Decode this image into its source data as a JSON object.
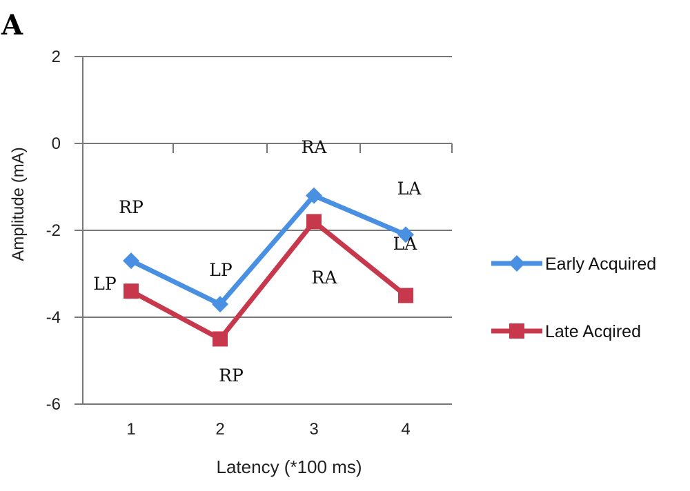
{
  "chart_data": {
    "type": "line",
    "panel_label": "A",
    "title": "",
    "xlabel": "Latency (*100 ms)",
    "ylabel": "Amplitude (mA)",
    "categories": [
      1,
      2,
      3,
      4
    ],
    "ylim": [
      -6,
      2
    ],
    "yticks": [
      2,
      0,
      -2,
      -4,
      -6
    ],
    "grid": true,
    "legend_position": "right",
    "series": [
      {
        "name": "Early Acquired",
        "values": [
          -2.7,
          -3.7,
          -1.2,
          -2.1
        ],
        "color": "#4a90e2",
        "marker": "diamond",
        "point_labels": [
          "RP",
          "LP",
          "RA",
          "LA"
        ]
      },
      {
        "name": "Late Acqired",
        "values": [
          -3.4,
          -4.5,
          -1.8,
          -3.5
        ],
        "color": "#c8384c",
        "marker": "square",
        "point_labels": [
          "LP",
          "RP",
          "RA",
          "LA"
        ]
      }
    ]
  }
}
